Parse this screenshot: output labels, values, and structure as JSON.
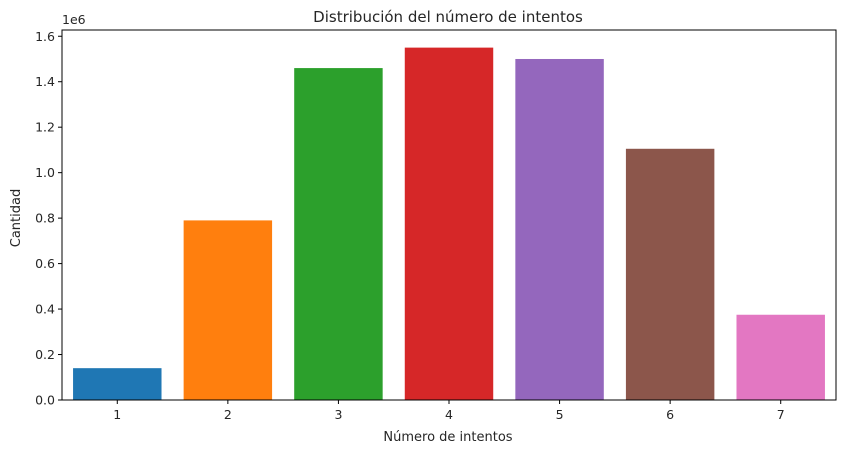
{
  "chart_data": {
    "type": "bar",
    "title": "Distribución del número de intentos",
    "xlabel": "Número de intentos",
    "ylabel": "Cantidad",
    "offset_text": "1e6",
    "categories": [
      "1",
      "2",
      "3",
      "4",
      "5",
      "6",
      "7"
    ],
    "values": [
      140000,
      790000,
      1460000,
      1550000,
      1500000,
      1105000,
      375000
    ],
    "colors": [
      "#1f77b4",
      "#ff7f0e",
      "#2ca02c",
      "#d62728",
      "#9467bd",
      "#8c564b",
      "#e377c2"
    ],
    "ylim": [
      0,
      1627500
    ],
    "yticks": [
      0,
      200000,
      400000,
      600000,
      800000,
      1000000,
      1200000,
      1400000,
      1600000
    ],
    "ytick_labels": [
      "0.0",
      "0.2",
      "0.4",
      "0.6",
      "0.8",
      "1.0",
      "1.2",
      "1.4",
      "1.6"
    ],
    "grid": false,
    "legend": "none"
  }
}
